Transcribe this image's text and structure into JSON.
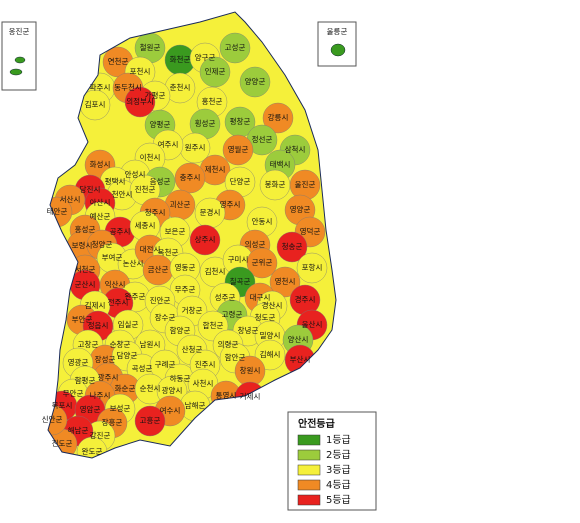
{
  "insets": {
    "left": "옹진군",
    "right": "울릉군"
  },
  "legend": {
    "title": "안전등급",
    "items": [
      {
        "label": "1등급",
        "color": "#3a9a1f"
      },
      {
        "label": "2등급",
        "color": "#9ccc3c"
      },
      {
        "label": "3등급",
        "color": "#f5f03a"
      },
      {
        "label": "4등급",
        "color": "#f08a24"
      },
      {
        "label": "5등급",
        "color": "#e8221f"
      }
    ]
  },
  "regions": [
    {
      "name": "철원군",
      "grade": 2
    },
    {
      "name": "화천군",
      "grade": 1
    },
    {
      "name": "양구군",
      "grade": 3
    },
    {
      "name": "고성군",
      "grade": 2
    },
    {
      "name": "연천군",
      "grade": 4
    },
    {
      "name": "포천시",
      "grade": 3
    },
    {
      "name": "인제군",
      "grade": 2
    },
    {
      "name": "양양군",
      "grade": 2
    },
    {
      "name": "파주시",
      "grade": 3
    },
    {
      "name": "동두천시",
      "grade": 4
    },
    {
      "name": "춘천시",
      "grade": 3
    },
    {
      "name": "가평군",
      "grade": 3
    },
    {
      "name": "의정부시",
      "grade": 5
    },
    {
      "name": "홍천군",
      "grade": 3
    },
    {
      "name": "강릉시",
      "grade": 4
    },
    {
      "name": "김포시",
      "grade": 3
    },
    {
      "name": "양평군",
      "grade": 2
    },
    {
      "name": "횡성군",
      "grade": 2
    },
    {
      "name": "평창군",
      "grade": 2
    },
    {
      "name": "정선군",
      "grade": 2
    },
    {
      "name": "원주시",
      "grade": 3
    },
    {
      "name": "여주시",
      "grade": 3
    },
    {
      "name": "화성시",
      "grade": 4
    },
    {
      "name": "이천시",
      "grade": 3
    },
    {
      "name": "영월군",
      "grade": 4
    },
    {
      "name": "삼척시",
      "grade": 2
    },
    {
      "name": "태백시",
      "grade": 2
    },
    {
      "name": "제천시",
      "grade": 4
    },
    {
      "name": "충주시",
      "grade": 4
    },
    {
      "name": "안성시",
      "grade": 3
    },
    {
      "name": "평택시",
      "grade": 3
    },
    {
      "name": "단양군",
      "grade": 3
    },
    {
      "name": "봉화군",
      "grade": 3
    },
    {
      "name": "울진군",
      "grade": 4
    },
    {
      "name": "당진시",
      "grade": 5
    },
    {
      "name": "천안시",
      "grade": 3
    },
    {
      "name": "음성군",
      "grade": 2
    },
    {
      "name": "서산시",
      "grade": 4
    },
    {
      "name": "아산시",
      "grade": 5
    },
    {
      "name": "진천군",
      "grade": 3
    },
    {
      "name": "괴산군",
      "grade": 4
    },
    {
      "name": "영주시",
      "grade": 4
    },
    {
      "name": "예산군",
      "grade": 3
    },
    {
      "name": "청주시",
      "grade": 4
    },
    {
      "name": "문경시",
      "grade": 3
    },
    {
      "name": "영양군",
      "grade": 4
    },
    {
      "name": "태안군",
      "grade": 4
    },
    {
      "name": "홍성군",
      "grade": 4
    },
    {
      "name": "공주시",
      "grade": 5
    },
    {
      "name": "세종시",
      "grade": 3
    },
    {
      "name": "상주시",
      "grade": 5
    },
    {
      "name": "안동시",
      "grade": 3
    },
    {
      "name": "영덕군",
      "grade": 4
    },
    {
      "name": "보령시",
      "grade": 4
    },
    {
      "name": "청양군",
      "grade": 4
    },
    {
      "name": "보은군",
      "grade": 3
    },
    {
      "name": "의성군",
      "grade": 4
    },
    {
      "name": "부여군",
      "grade": 3
    },
    {
      "name": "논산시",
      "grade": 3
    },
    {
      "name": "대전시",
      "grade": 4
    },
    {
      "name": "옥천군",
      "grade": 3
    },
    {
      "name": "청송군",
      "grade": 5
    },
    {
      "name": "서천군",
      "grade": 4
    },
    {
      "name": "금산군",
      "grade": 4
    },
    {
      "name": "영동군",
      "grade": 3
    },
    {
      "name": "김천시",
      "grade": 3
    },
    {
      "name": "구미시",
      "grade": 3
    },
    {
      "name": "군위군",
      "grade": 4
    },
    {
      "name": "포항시",
      "grade": 3
    },
    {
      "name": "군산시",
      "grade": 5
    },
    {
      "name": "익산시",
      "grade": 4
    },
    {
      "name": "무주군",
      "grade": 3
    },
    {
      "name": "칠곡군",
      "grade": 1
    },
    {
      "name": "영천시",
      "grade": 4
    },
    {
      "name": "완주군",
      "grade": 3
    },
    {
      "name": "전주시",
      "grade": 5
    },
    {
      "name": "진안군",
      "grade": 3
    },
    {
      "name": "성주군",
      "grade": 3
    },
    {
      "name": "대구시",
      "grade": 4
    },
    {
      "name": "경주시",
      "grade": 5
    },
    {
      "name": "경산시",
      "grade": 3
    },
    {
      "name": "김제시",
      "grade": 3
    },
    {
      "name": "부안군",
      "grade": 4
    },
    {
      "name": "임실군",
      "grade": 3
    },
    {
      "name": "장수군",
      "grade": 3
    },
    {
      "name": "거창군",
      "grade": 3
    },
    {
      "name": "고령군",
      "grade": 2
    },
    {
      "name": "청도군",
      "grade": 3
    },
    {
      "name": "울산시",
      "grade": 5
    },
    {
      "name": "정읍시",
      "grade": 5
    },
    {
      "name": "고창군",
      "grade": 3
    },
    {
      "name": "순창군",
      "grade": 3
    },
    {
      "name": "남원시",
      "grade": 3
    },
    {
      "name": "함양군",
      "grade": 3
    },
    {
      "name": "합천군",
      "grade": 3
    },
    {
      "name": "창녕군",
      "grade": 3
    },
    {
      "name": "밀양시",
      "grade": 3
    },
    {
      "name": "양산시",
      "grade": 2
    },
    {
      "name": "산청군",
      "grade": 3
    },
    {
      "name": "의령군",
      "grade": 3
    },
    {
      "name": "김해시",
      "grade": 3
    },
    {
      "name": "부산시",
      "grade": 5
    },
    {
      "name": "장성군",
      "grade": 4
    },
    {
      "name": "담양군",
      "grade": 3
    },
    {
      "name": "영광군",
      "grade": 3
    },
    {
      "name": "곡성군",
      "grade": 3
    },
    {
      "name": "구례군",
      "grade": 3
    },
    {
      "name": "하동군",
      "grade": 3
    },
    {
      "name": "진주시",
      "grade": 3
    },
    {
      "name": "함안군",
      "grade": 3
    },
    {
      "name": "창원시",
      "grade": 4
    },
    {
      "name": "광주시",
      "grade": 4
    },
    {
      "name": "함평군",
      "grade": 3
    },
    {
      "name": "화순군",
      "grade": 4
    },
    {
      "name": "순천시",
      "grade": 3
    },
    {
      "name": "광양시",
      "grade": 3
    },
    {
      "name": "사천시",
      "grade": 3
    },
    {
      "name": "통영시",
      "grade": 4
    },
    {
      "name": "거제시",
      "grade": 5
    },
    {
      "name": "무안군",
      "grade": 3
    },
    {
      "name": "나주시",
      "grade": 4
    },
    {
      "name": "목포시",
      "grade": 5
    },
    {
      "name": "영암군",
      "grade": 5
    },
    {
      "name": "보성군",
      "grade": 3
    },
    {
      "name": "남해군",
      "grade": 3
    },
    {
      "name": "여수시",
      "grade": 4
    },
    {
      "name": "고흥군",
      "grade": 5
    },
    {
      "name": "장흥군",
      "grade": 4
    },
    {
      "name": "강진군",
      "grade": 3
    },
    {
      "name": "해남군",
      "grade": 5
    },
    {
      "name": "완도군",
      "grade": 3
    },
    {
      "name": "진도군",
      "grade": 4
    },
    {
      "name": "신안군",
      "grade": 4
    }
  ]
}
